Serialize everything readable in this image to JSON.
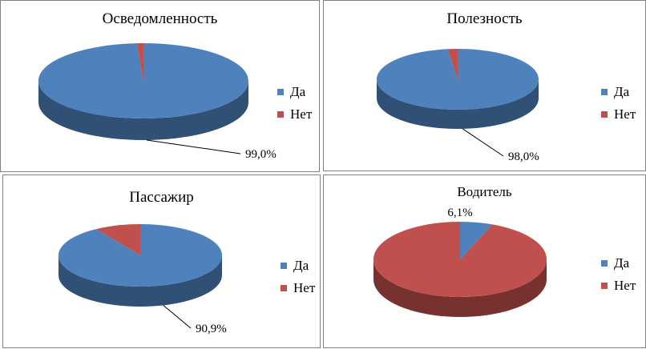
{
  "colors": {
    "yes": "#4f81bd",
    "no": "#c0504d"
  },
  "chart_data": [
    {
      "type": "pie",
      "title": "Осведомленность",
      "categories": [
        "Да",
        "Нет"
      ],
      "values": [
        99.0,
        1.0
      ],
      "data_labels": [
        "99,0%",
        ""
      ],
      "legend": "right",
      "style": "3d"
    },
    {
      "type": "pie",
      "title": "Полезность",
      "categories": [
        "Да",
        "Нет"
      ],
      "values": [
        98.0,
        2.0
      ],
      "data_labels": [
        "98,0%",
        ""
      ],
      "legend": "right",
      "style": "3d"
    },
    {
      "type": "pie",
      "title": "Пассажир",
      "categories": [
        "Да",
        "Нет"
      ],
      "values": [
        90.9,
        9.1
      ],
      "data_labels": [
        "90,9%",
        ""
      ],
      "legend": "right",
      "style": "3d"
    },
    {
      "type": "pie",
      "title": "Водитель",
      "categories": [
        "Да",
        "Нет"
      ],
      "values": [
        6.1,
        93.9
      ],
      "data_labels": [
        "6,1%",
        ""
      ],
      "legend": "right",
      "style": "3d"
    }
  ]
}
